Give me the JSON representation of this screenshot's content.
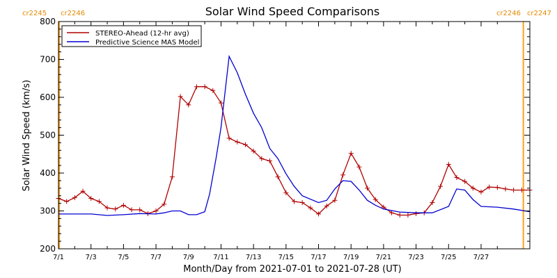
{
  "chart_data": {
    "type": "line",
    "title": "Solar Wind Speed Comparisons",
    "xlabel": "Month/Day from 2021-07-01 to 2021-07-28 (UT)",
    "ylabel": "Solar Wind Speed (km/s)",
    "xlim": [
      0,
      29.0
    ],
    "ylim": [
      200,
      800
    ],
    "x_ticks": [
      0,
      2,
      4,
      6,
      8,
      10,
      12,
      14,
      16,
      18,
      20,
      22,
      24,
      26
    ],
    "x_tick_labels": [
      "7/1",
      "7/3",
      "7/5",
      "7/7",
      "7/9",
      "7/11",
      "7/13",
      "7/15",
      "7/17",
      "7/19",
      "7/21",
      "7/23",
      "7/25",
      "7/27"
    ],
    "y_ticks": [
      200,
      300,
      400,
      500,
      600,
      700,
      800
    ],
    "legend": {
      "placement": "top-left"
    },
    "carrington": {
      "left_labels": [
        "cr2245",
        "cr2246"
      ],
      "right_labels": [
        "cr2246",
        "cr2247"
      ],
      "boundaries_x": [
        0.05,
        28.6
      ]
    },
    "series": [
      {
        "name": "STEREO-Ahead (12-hr avg)",
        "color": "#b00000",
        "markers": "plus",
        "x": [
          0,
          0.5,
          1.0,
          1.5,
          2.0,
          2.5,
          3.0,
          3.5,
          4.0,
          4.5,
          5.0,
          5.5,
          6.0,
          6.5,
          7.0,
          7.5,
          8.0,
          8.5,
          9.0,
          9.5,
          10.0,
          10.5,
          11.0,
          11.5,
          12.0,
          12.5,
          13.0,
          13.5,
          14.0,
          14.5,
          15.0,
          15.5,
          16.0,
          16.5,
          17.0,
          17.5,
          18.0,
          18.5,
          19.0,
          19.5,
          20.0,
          20.5,
          21.0,
          21.5,
          22.0,
          22.5,
          23.0,
          23.5,
          24.0,
          24.5,
          25.0,
          25.5,
          26.0,
          26.5,
          27.0,
          27.5,
          28.0,
          28.5,
          29.0
        ],
        "values": [
          333,
          325,
          335,
          352,
          333,
          325,
          308,
          305,
          315,
          303,
          303,
          293,
          300,
          318,
          390,
          602,
          580,
          628,
          628,
          618,
          585,
          492,
          482,
          475,
          458,
          438,
          432,
          390,
          348,
          325,
          322,
          308,
          292,
          313,
          328,
          395,
          452,
          416,
          360,
          330,
          310,
          295,
          289,
          289,
          293,
          295,
          322,
          365,
          423,
          388,
          378,
          360,
          350,
          363,
          362,
          358,
          355,
          355,
          355
        ]
      },
      {
        "name": "Predictive Science MAS Model",
        "color": "#0000d0",
        "markers": "none",
        "x": [
          0,
          1,
          2,
          3,
          4,
          5,
          6,
          6.5,
          7,
          7.5,
          8,
          8.5,
          9,
          9.3,
          9.7,
          10,
          10.5,
          11,
          11.5,
          12,
          12.5,
          13,
          13.5,
          14,
          14.5,
          15,
          16,
          16.5,
          17,
          17.5,
          18,
          18.5,
          19,
          19.5,
          20,
          21,
          22,
          23,
          24,
          24.5,
          25,
          25.5,
          26,
          27,
          28,
          29
        ],
        "values": [
          292,
          292,
          292,
          288,
          290,
          293,
          292,
          295,
          300,
          300,
          290,
          290,
          298,
          345,
          440,
          520,
          708,
          665,
          608,
          558,
          520,
          465,
          438,
          398,
          365,
          340,
          322,
          328,
          358,
          380,
          378,
          355,
          328,
          315,
          305,
          297,
          295,
          295,
          312,
          358,
          355,
          330,
          312,
          310,
          305,
          298
        ]
      }
    ]
  }
}
